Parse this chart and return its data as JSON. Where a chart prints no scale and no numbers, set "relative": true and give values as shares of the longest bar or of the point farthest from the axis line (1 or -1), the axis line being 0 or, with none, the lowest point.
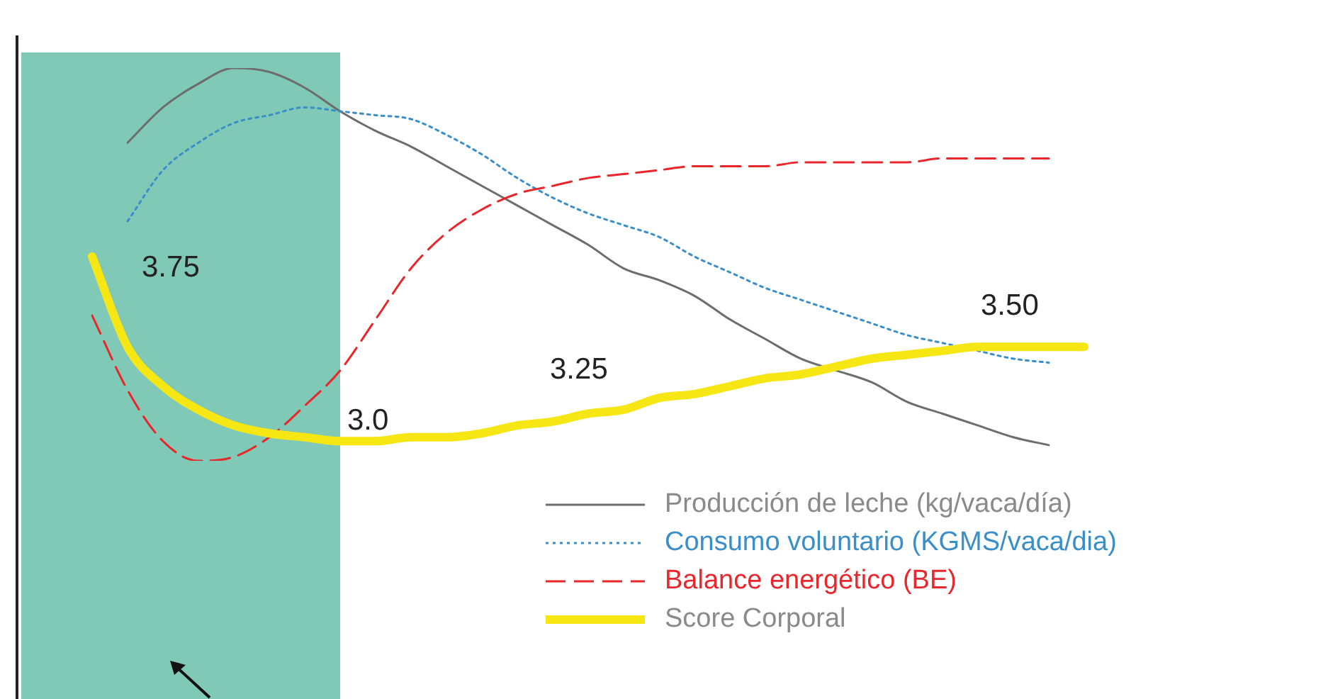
{
  "chart_data": {
    "type": "line",
    "relative": true,
    "categories": [
      null,
      null,
      null,
      null,
      null,
      null,
      null,
      null,
      null,
      null,
      null,
      null,
      null,
      null,
      null,
      null,
      null,
      null,
      null,
      null,
      null,
      null,
      null,
      null,
      null,
      null,
      null,
      null,
      null
    ],
    "series": [
      {
        "name": "Producción de leche (kg/vaca/día)",
        "color": "#6d6d6d",
        "line_style": "solid",
        "values": [
          null,
          0.81,
          0.9,
          0.96,
          1,
          0.99,
          0.95,
          0.89,
          0.84,
          0.8,
          0.75,
          0.7,
          0.65,
          0.6,
          0.55,
          0.49,
          0.46,
          0.42,
          0.36,
          0.31,
          0.26,
          0.23,
          0.2,
          0.15,
          0.12,
          0.09,
          0.06,
          0.04,
          null
        ]
      },
      {
        "name": "Consumo voluntario (KGMS/vaca/dia)",
        "color": "#3a8fc8",
        "line_style": "dotted",
        "values": [
          null,
          0.61,
          0.74,
          0.81,
          0.86,
          0.88,
          0.9,
          0.89,
          0.88,
          0.87,
          0.83,
          0.78,
          0.72,
          0.67,
          0.63,
          0.6,
          0.57,
          0.52,
          0.48,
          0.44,
          0.41,
          0.38,
          0.35,
          0.32,
          0.3,
          0.28,
          0.26,
          0.25,
          null
        ]
      },
      {
        "name": "Balance energético (BE)",
        "color": "#e8262b",
        "line_style": "dashed",
        "values": [
          0.37,
          0.18,
          0.05,
          0,
          0.01,
          0.06,
          0.14,
          0.23,
          0.36,
          0.49,
          0.58,
          0.64,
          0.68,
          0.7,
          0.72,
          0.73,
          0.74,
          0.75,
          0.75,
          0.75,
          0.76,
          0.76,
          0.76,
          0.76,
          0.77,
          0.77,
          0.77,
          0.77,
          null
        ]
      },
      {
        "name": "Score Corporal",
        "color": "#f5e614",
        "line_style": "solid",
        "values": [
          0.52,
          0.29,
          0.19,
          0.13,
          0.09,
          0.07,
          0.06,
          0.05,
          0.05,
          0.06,
          0.06,
          0.07,
          0.09,
          0.1,
          0.12,
          0.13,
          0.16,
          0.17,
          0.19,
          0.21,
          0.22,
          0.24,
          0.26,
          0.27,
          0.28,
          0.29,
          0.29,
          0.29,
          0.29
        ]
      }
    ],
    "annotations": [
      "3.75",
      "3.0",
      "3.25",
      "3.50"
    ],
    "legend": "bottom right",
    "marker": "none"
  }
}
